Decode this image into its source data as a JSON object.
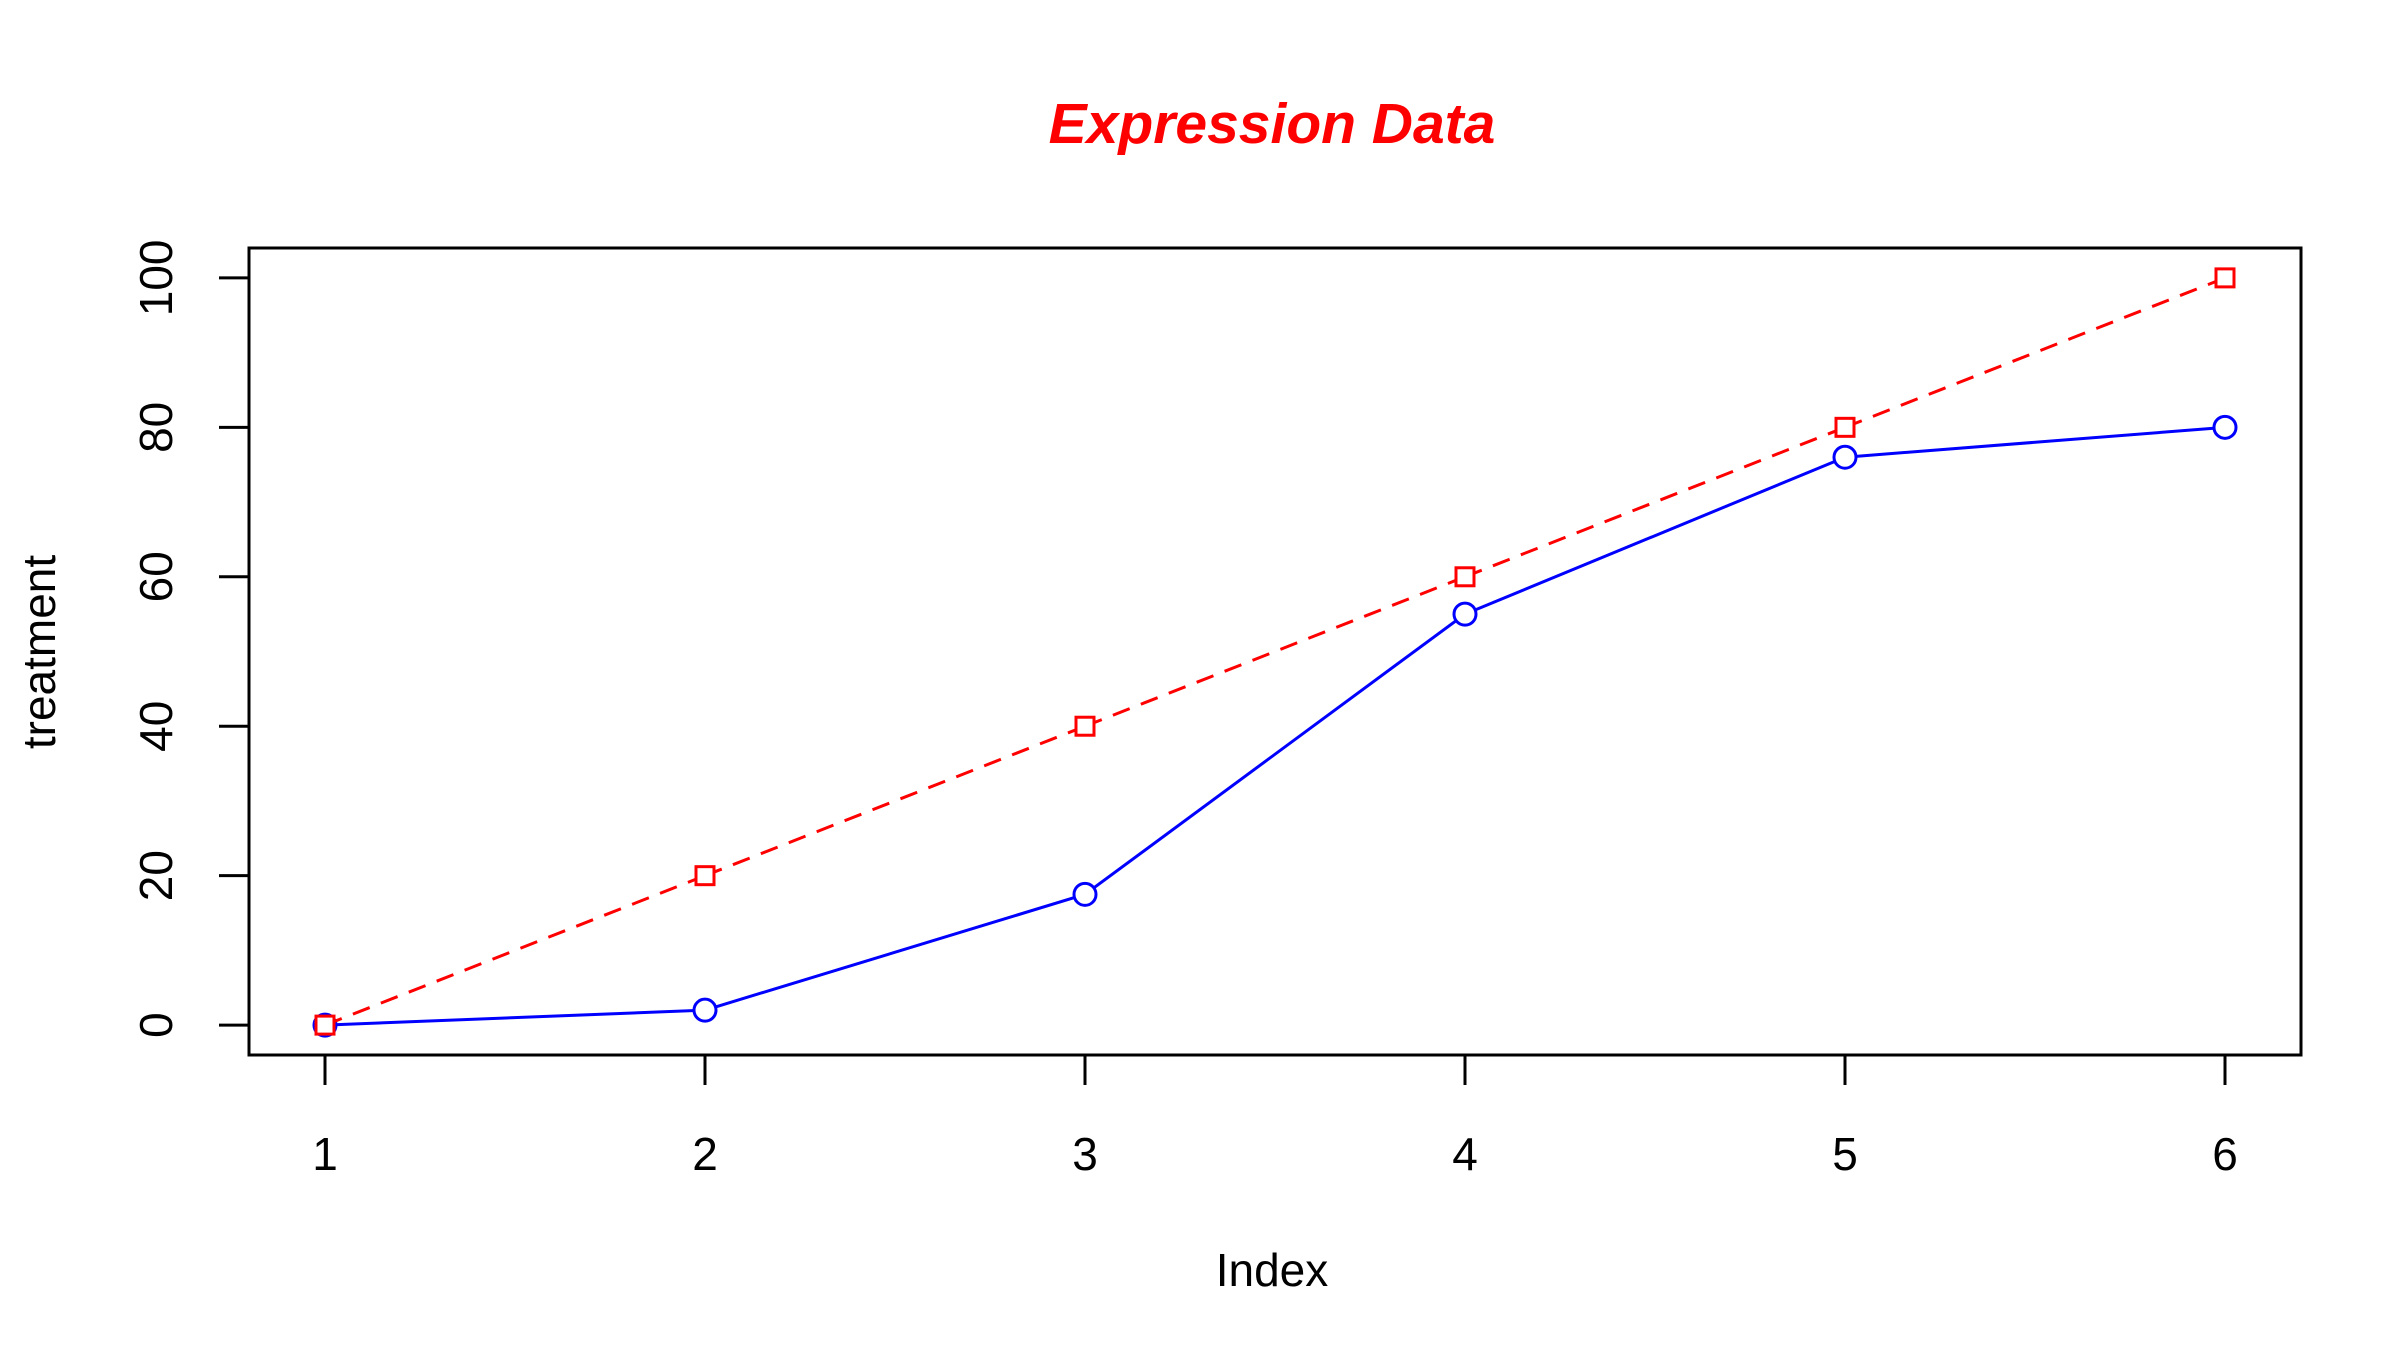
{
  "chart_data": {
    "type": "line",
    "title": "Expression Data",
    "xlabel": "Index",
    "ylabel": "treatment",
    "x": [
      1,
      2,
      3,
      4,
      5,
      6
    ],
    "xlim": [
      0.8,
      6.2
    ],
    "ylim": [
      -4,
      104
    ],
    "x_ticks": [
      "1",
      "2",
      "3",
      "4",
      "5",
      "6"
    ],
    "y_ticks": [
      "0",
      "20",
      "40",
      "60",
      "80",
      "100"
    ],
    "grid": false,
    "legend": "none",
    "series": [
      {
        "values": [
          0,
          2,
          17.5,
          55,
          76,
          80
        ],
        "color": "#0000ff",
        "marker": "circle",
        "line_style": "solid"
      },
      {
        "values": [
          0,
          20,
          40,
          60,
          80,
          100
        ],
        "color": "#ff0000",
        "marker": "square",
        "line_style": "dashed"
      }
    ],
    "colors": {
      "title": "#ff0000",
      "axes": "#000000"
    }
  }
}
